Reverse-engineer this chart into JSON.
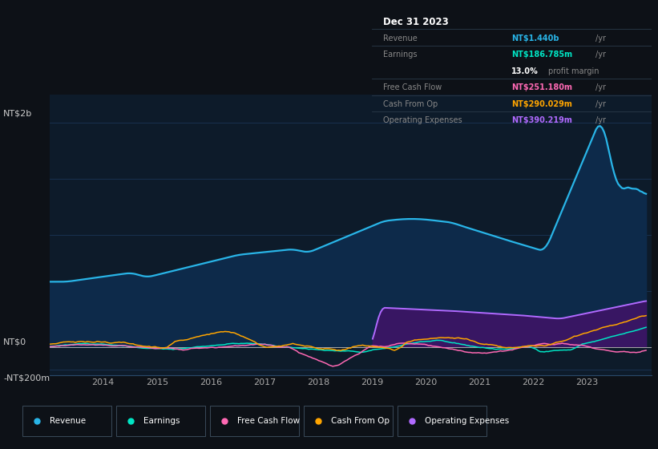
{
  "bg_color": "#0d1117",
  "plot_bg_color": "#0d1b2a",
  "grid_color": "#1e3a5f",
  "title_date": "Dec 31 2023",
  "ylabel_top": "NT$2b",
  "ylabel_zero": "NT$0",
  "ylabel_neg": "-NT$200m",
  "revenue_color": "#29b5e8",
  "earnings_color": "#00e5c4",
  "fcf_color": "#ff69b4",
  "cashfromop_color": "#ffa500",
  "opex_color": "#b06aff",
  "opex_fill_color": "#3d1466",
  "revenue_fill_color": "#0d2a4a",
  "info_row_labels": [
    "Revenue",
    "Earnings",
    "",
    "Free Cash Flow",
    "Cash From Op",
    "Operating Expenses"
  ],
  "info_row_values": [
    "NT$1.440b /yr",
    "NT$186.785m /yr",
    "13.0% profit margin",
    "NT$251.180m /yr",
    "NT$290.029m /yr",
    "NT$390.219m /yr"
  ],
  "info_row_colors": [
    "#29b5e8",
    "#00e5c4",
    "#ffffff",
    "#ff69b4",
    "#ffa500",
    "#b06aff"
  ],
  "legend": [
    {
      "label": "Revenue",
      "color": "#29b5e8"
    },
    {
      "label": "Earnings",
      "color": "#00e5c4"
    },
    {
      "label": "Free Cash Flow",
      "color": "#ff69b4"
    },
    {
      "label": "Cash From Op",
      "color": "#ffa500"
    },
    {
      "label": "Operating Expenses",
      "color": "#b06aff"
    }
  ]
}
